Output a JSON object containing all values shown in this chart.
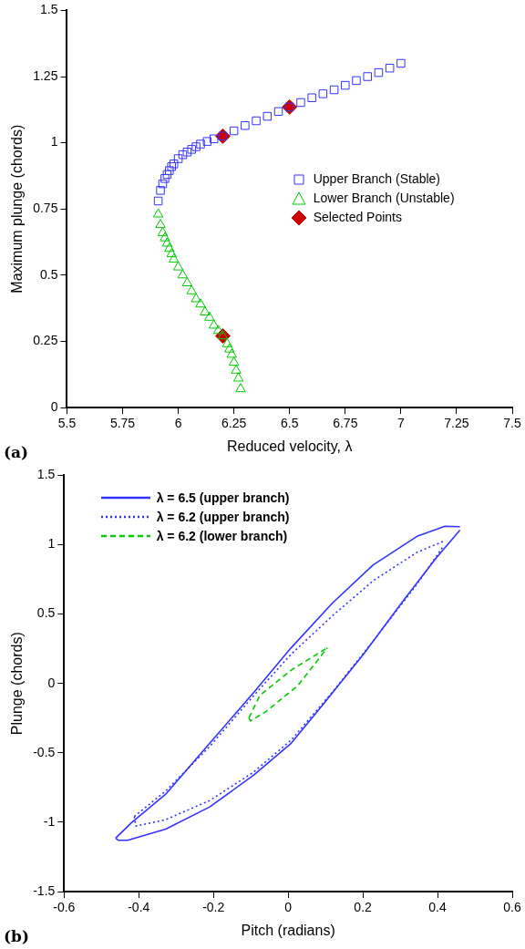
{
  "chart_data": [
    {
      "type": "scatter",
      "xlabel": "Reduced velocity, λ",
      "ylabel": "Maximum plunge (chords)",
      "xlim": [
        5.5,
        7.5
      ],
      "ylim": [
        0,
        1.5
      ],
      "xticks": [
        5.5,
        5.75,
        6,
        6.25,
        6.5,
        6.75,
        7,
        7.25,
        7.5
      ],
      "yticks": [
        0,
        0.25,
        0.5,
        0.75,
        1,
        1.25,
        1.5
      ],
      "grid": false,
      "legend": "right",
      "annotations": [
        "(a)"
      ],
      "series": [
        {
          "name": "Upper Branch (Stable)",
          "color": "#3333ff",
          "marker": "square",
          "x": [
            5.91,
            5.92,
            5.93,
            5.94,
            5.95,
            5.96,
            5.97,
            5.98,
            6.0,
            6.02,
            6.04,
            6.06,
            6.08,
            6.1,
            6.13,
            6.16,
            6.2,
            6.25,
            6.3,
            6.35,
            6.4,
            6.45,
            6.5,
            6.55,
            6.6,
            6.65,
            6.7,
            6.75,
            6.8,
            6.85,
            6.9,
            6.95,
            7.0
          ],
          "values": [
            0.78,
            0.82,
            0.845,
            0.865,
            0.88,
            0.895,
            0.91,
            0.92,
            0.94,
            0.955,
            0.965,
            0.975,
            0.985,
            0.995,
            1.005,
            1.015,
            1.025,
            1.045,
            1.065,
            1.083,
            1.1,
            1.118,
            1.135,
            1.152,
            1.17,
            1.185,
            1.2,
            1.217,
            1.235,
            1.25,
            1.265,
            1.282,
            1.3
          ]
        },
        {
          "name": "Lower Branch (Unstable)",
          "color": "#00cc00",
          "marker": "triangle",
          "x": [
            5.91,
            5.92,
            5.93,
            5.94,
            5.95,
            5.96,
            5.97,
            5.98,
            6.0,
            6.02,
            6.04,
            6.06,
            6.08,
            6.1,
            6.12,
            6.14,
            6.16,
            6.18,
            6.2,
            6.22,
            6.23,
            6.24,
            6.25,
            6.26,
            6.27,
            6.28
          ],
          "values": [
            0.73,
            0.69,
            0.66,
            0.64,
            0.62,
            0.6,
            0.58,
            0.56,
            0.53,
            0.5,
            0.47,
            0.44,
            0.41,
            0.39,
            0.36,
            0.34,
            0.31,
            0.29,
            0.27,
            0.24,
            0.22,
            0.2,
            0.17,
            0.14,
            0.11,
            0.07
          ]
        },
        {
          "name": "Selected Points",
          "color": "#cc0000",
          "marker": "diamond",
          "x": [
            6.2,
            6.5,
            6.2
          ],
          "values": [
            1.025,
            1.135,
            0.27
          ]
        }
      ]
    },
    {
      "type": "line",
      "xlabel": "Pitch (radians)",
      "ylabel": "Plunge (chords)",
      "xlim": [
        -0.6,
        0.6
      ],
      "ylim": [
        -1.5,
        1.5
      ],
      "xticks": [
        -0.6,
        -0.4,
        -0.2,
        0,
        0.2,
        0.4,
        0.6
      ],
      "yticks": [
        -1.5,
        -1,
        -0.5,
        0,
        0.5,
        1,
        1.5
      ],
      "grid": false,
      "legend": "top left",
      "marker": "none",
      "annotations": [
        "(b)"
      ],
      "series": [
        {
          "name": "λ = 6.5 (upper branch)",
          "color": "#3333ff",
          "line_style": "solid",
          "x": [
            -0.462,
            -0.42,
            -0.328,
            -0.21,
            -0.092,
            0.008,
            0.118,
            0.227,
            0.345,
            0.42,
            0.46
          ],
          "values": [
            -1.115,
            -1.005,
            -0.798,
            -0.431,
            -0.064,
            0.257,
            0.578,
            0.853,
            1.06,
            1.133,
            1.13
          ]
        },
        {
          "name": "λ = 6.2 (upper branch)",
          "color": "#3333ff",
          "line_style": "dotted",
          "x": [
            -0.412,
            -0.328,
            -0.21,
            -0.092,
            0.008,
            0.118,
            0.227,
            0.345,
            0.416
          ],
          "values": [
            -0.959,
            -0.775,
            -0.454,
            -0.087,
            0.211,
            0.486,
            0.739,
            0.945,
            1.025
          ]
        },
        {
          "name": "λ = 6.2 (lower branch)",
          "color": "#00cc00",
          "line_style": "dashed",
          "x": [
            -0.105,
            -0.076,
            0.008,
            0.105
          ],
          "values": [
            -0.248,
            -0.087,
            0.096,
            0.257
          ]
        },
        {
          "color": "#3333ff",
          "line_style": "solid",
          "x": [
            -0.462,
            -0.455,
            -0.43,
            -0.328,
            -0.21,
            -0.092,
            0.008,
            0.092,
            0.202,
            0.303,
            0.395,
            0.46
          ],
          "values": [
            -1.115,
            -1.13,
            -1.13,
            -1.05,
            -0.89,
            -0.66,
            -0.431,
            -0.156,
            0.211,
            0.578,
            0.9,
            1.105
          ]
        },
        {
          "color": "#3333ff",
          "line_style": "dotted",
          "x": [
            -0.412,
            -0.408,
            -0.328,
            -0.21,
            -0.092,
            0.008,
            0.118,
            0.227,
            0.345,
            0.416
          ],
          "values": [
            -0.959,
            -1.028,
            -0.982,
            -0.844,
            -0.638,
            -0.408,
            -0.064,
            0.303,
            0.716,
            0.991
          ]
        },
        {
          "color": "#00cc00",
          "line_style": "dashed",
          "x": [
            -0.105,
            -0.101,
            -0.059,
            0.025,
            0.105
          ],
          "values": [
            -0.248,
            -0.27,
            -0.202,
            -0.018,
            0.257
          ]
        }
      ]
    }
  ]
}
